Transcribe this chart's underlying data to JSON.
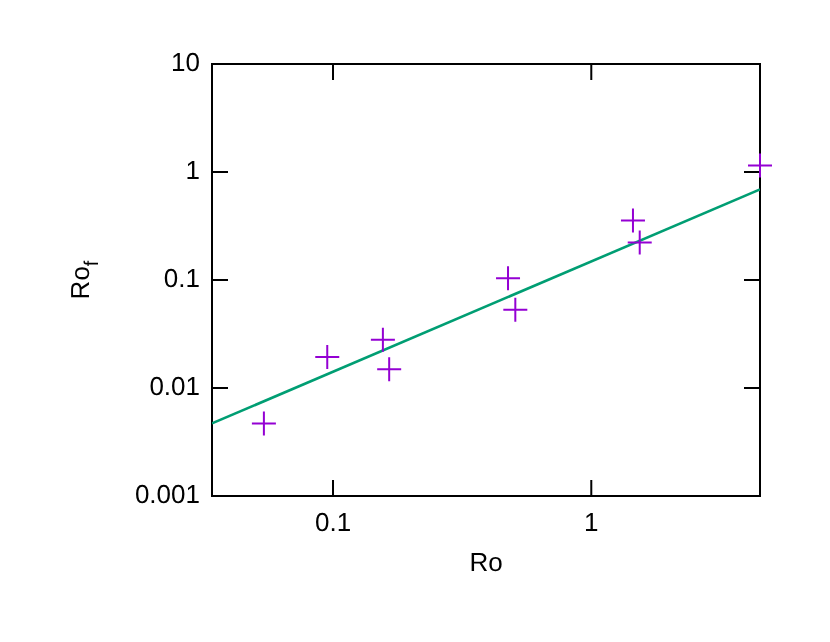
{
  "chart_data": {
    "type": "scatter",
    "xlabel": "Ro",
    "ylabel": "Ro$_{f}$",
    "log": "xy",
    "xlim": [
      0.034,
      4.5
    ],
    "ylim": [
      0.001,
      10
    ],
    "xticks": [
      0.1,
      1
    ],
    "yticks": [
      0.001,
      0.01,
      0.1,
      1,
      10
    ],
    "grid": false,
    "legend": false,
    "marker": "cross",
    "series": [
      {
        "color": "#9400d3",
        "x": [
          0.054,
          0.095,
          0.156,
          0.165,
          0.476,
          0.508,
          1.45,
          1.54,
          4.5
        ],
        "values": [
          0.0047,
          0.0194,
          0.028,
          0.0149,
          0.104,
          0.053,
          0.356,
          0.222,
          1.15
        ]
      },
      {
        "type": "line",
        "marker": "none",
        "color": "#009e73",
        "x": [
          0.034,
          4.5
        ],
        "values": [
          0.0047,
          0.69
        ]
      }
    ]
  }
}
